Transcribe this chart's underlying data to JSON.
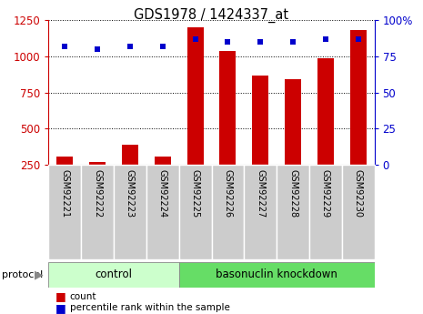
{
  "title": "GDS1978 / 1424337_at",
  "categories": [
    "GSM92221",
    "GSM92222",
    "GSM92223",
    "GSM92224",
    "GSM92225",
    "GSM92226",
    "GSM92227",
    "GSM92228",
    "GSM92229",
    "GSM92230"
  ],
  "counts": [
    310,
    270,
    390,
    305,
    1200,
    1040,
    870,
    840,
    990,
    1185
  ],
  "percentile_ranks": [
    82,
    80,
    82,
    82,
    87,
    85,
    85,
    85,
    87,
    87
  ],
  "left_ylim": [
    250,
    1250
  ],
  "right_ylim": [
    0,
    100
  ],
  "left_yticks": [
    250,
    500,
    750,
    1000,
    1250
  ],
  "right_yticks": [
    0,
    25,
    50,
    75,
    100
  ],
  "right_yticklabels": [
    "0",
    "25",
    "50",
    "75",
    "100%"
  ],
  "bar_color": "#cc0000",
  "square_color": "#0000cc",
  "grid_color": "#000000",
  "bg_color": "#ffffff",
  "control_label": "control",
  "knockdown_label": "basonuclin knockdown",
  "protocol_label": "protocol",
  "legend_count_label": "count",
  "legend_pct_label": "percentile rank within the sample",
  "control_bg": "#ccffcc",
  "knockdown_bg": "#66dd66",
  "tick_label_bg": "#cccccc",
  "bar_width": 0.5,
  "left_axis_color": "#cc0000",
  "right_axis_color": "#0000cc",
  "n_control": 4,
  "n_knockdown": 6
}
